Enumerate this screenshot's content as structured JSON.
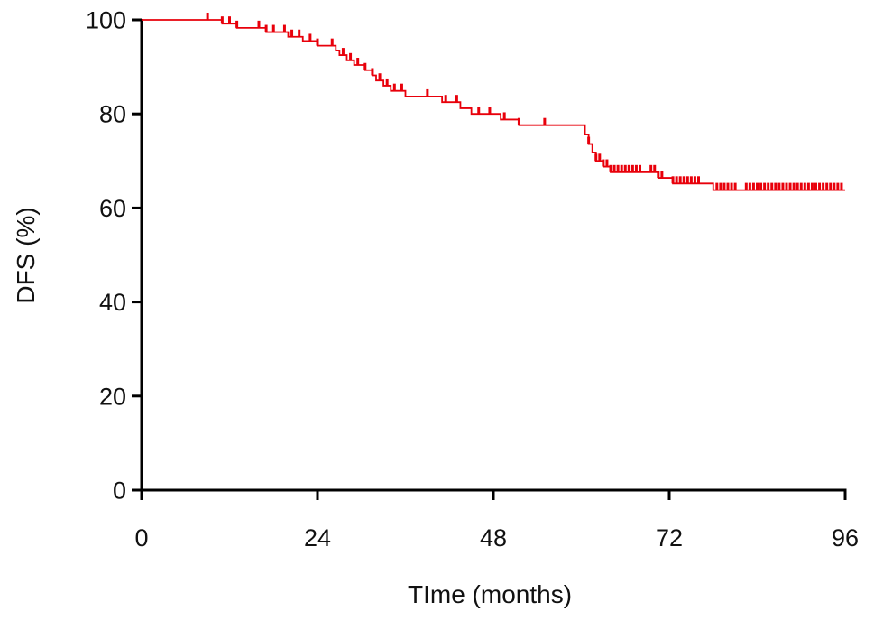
{
  "chart_data": {
    "type": "line",
    "title": "",
    "xlabel": "TIme (months)",
    "ylabel": "DFS (%)",
    "xlim": [
      0,
      96
    ],
    "ylim": [
      0,
      100
    ],
    "x_ticks": [
      0,
      24,
      48,
      72,
      96
    ],
    "y_ticks": [
      0,
      20,
      40,
      60,
      80,
      100
    ],
    "x_tick_labels": [
      "0",
      "24",
      "48",
      "72",
      "96"
    ],
    "y_tick_labels": [
      "0",
      "20",
      "40",
      "60",
      "80",
      "100"
    ],
    "grid": false,
    "legend": "none",
    "colors": {
      "curve": "#e8000b",
      "axis": "#000000"
    },
    "series": [
      {
        "name": "",
        "kind": "step",
        "x": [
          0,
          11.0,
          13.0,
          17.0,
          20.0,
          22.0,
          24.0,
          26.5,
          27.0,
          28.0,
          29.0,
          30.5,
          31.5,
          32.0,
          33.0,
          34.0,
          36.0,
          41.0,
          43.5,
          45.0,
          49.0,
          51.5,
          60.0,
          60.5,
          61.0,
          61.5,
          62.0,
          63.0,
          64.0,
          70.5,
          72.0,
          72.5,
          76.0,
          78.0,
          96.0
        ],
        "y": [
          100,
          99.2,
          98.3,
          97.4,
          96.4,
          95.5,
          94.5,
          93.5,
          92.5,
          91.4,
          90.4,
          89.3,
          88.2,
          87.1,
          86.0,
          84.9,
          83.7,
          82.5,
          81.2,
          80.0,
          78.8,
          77.6,
          77.6,
          75.6,
          73.6,
          71.8,
          70.0,
          68.8,
          67.6,
          66.4,
          66.4,
          65.2,
          65.2,
          63.8,
          63.8
        ]
      }
    ],
    "censor_marks": {
      "x": [
        9,
        11,
        12,
        13,
        16,
        17,
        18,
        19.5,
        20.5,
        21.5,
        23,
        24,
        26,
        27.5,
        28.5,
        29.5,
        30.5,
        31.5,
        32.5,
        33.5,
        34.5,
        35.5,
        39,
        41.5,
        43,
        46,
        47.5,
        49.5,
        51.5,
        55,
        61,
        62,
        62.5,
        63,
        63.5,
        64,
        64.5,
        65,
        65.5,
        66,
        66.5,
        67,
        67.5,
        68,
        69.5,
        70,
        70.5,
        71,
        72.5,
        73,
        73.5,
        74,
        74.5,
        75,
        75.5,
        76,
        78.5,
        79,
        79.5,
        80,
        80.5,
        81,
        82.5,
        83,
        83.5,
        84,
        84.5,
        85,
        85.5,
        86,
        86.5,
        87,
        87.5,
        88,
        88.5,
        89,
        89.5,
        90,
        90.5,
        91,
        91.5,
        92,
        92.5,
        93,
        93.5,
        94,
        94.5,
        95,
        95.5
      ]
    }
  }
}
